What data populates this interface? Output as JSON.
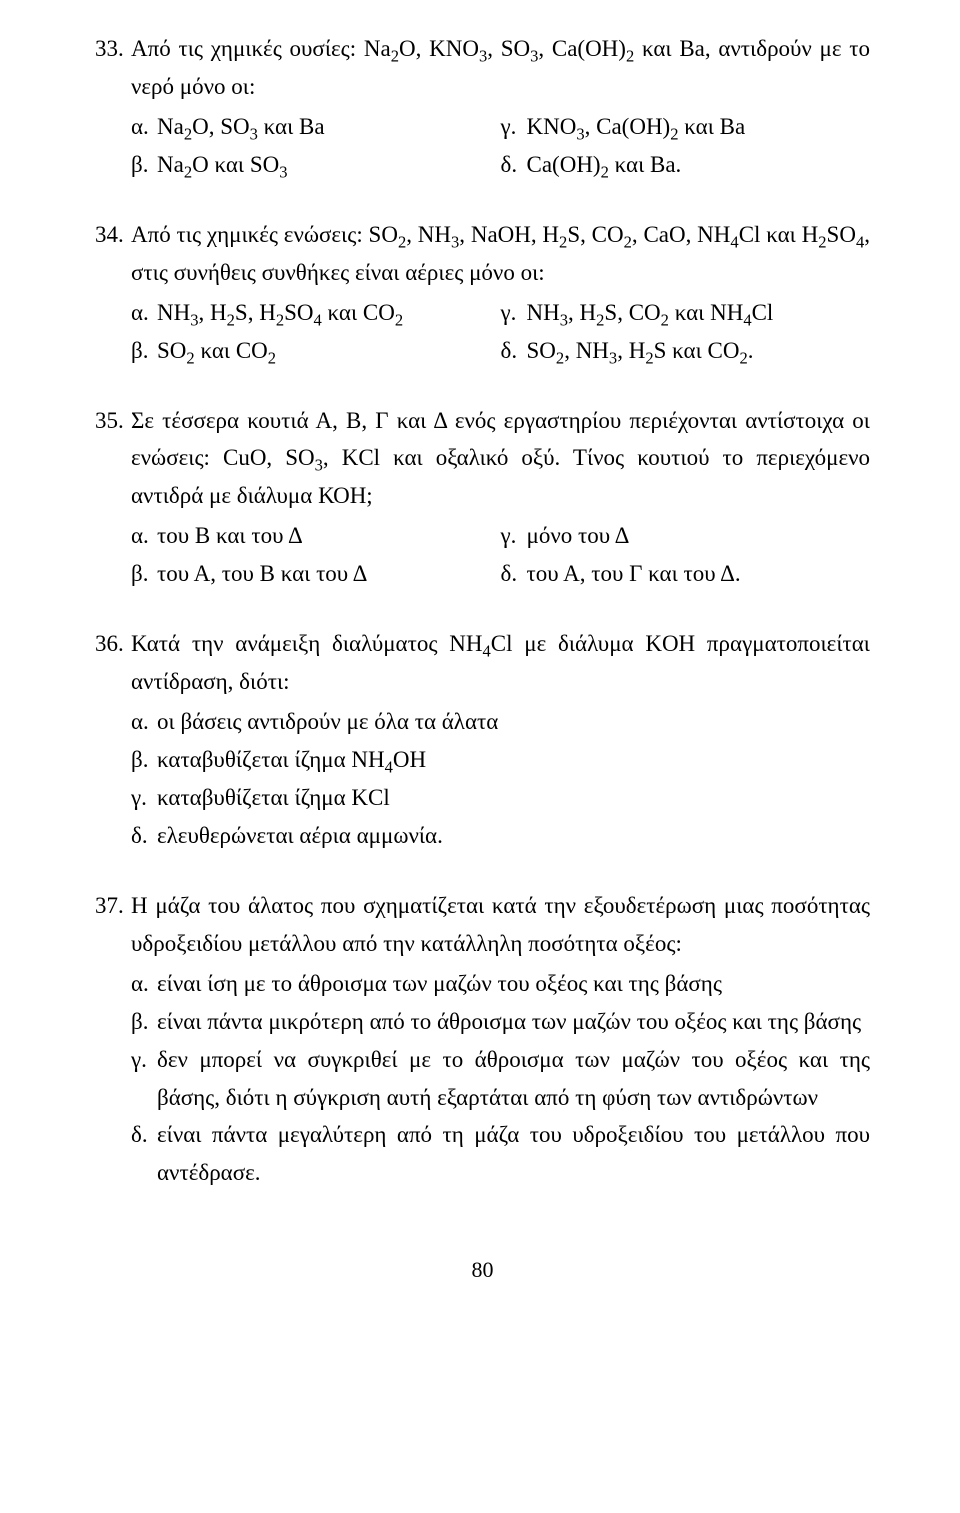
{
  "q33": {
    "num": "33.",
    "stem_html": "Από τις χημικές ουσίες: Na<span class='sub'>2</span>O, KNO<span class='sub'>3</span>, SO<span class='sub'>3</span>, Ca(OH)<span class='sub'>2</span> και Ba, αντιδρούν με το νερό μόνο οι:",
    "optA_label": "α.",
    "optA_html": "Na<span class='sub'>2</span>O, SO<span class='sub'>3</span> και Ba",
    "optB_label": "β.",
    "optB_html": "Na<span class='sub'>2</span>O και SO<span class='sub'>3</span>",
    "optC_label": "γ.",
    "optC_html": "KNO<span class='sub'>3</span>, Ca(OH)<span class='sub'>2</span> και Ba",
    "optD_label": "δ.",
    "optD_html": "Ca(OH)<span class='sub'>2</span> και Ba."
  },
  "q34": {
    "num": "34.",
    "stem_html": "Από τις χημικές ενώσεις: SO<span class='sub'>2</span>, NH<span class='sub'>3</span>, NaOH, H<span class='sub'>2</span>S, CO<span class='sub'>2</span>, CaO, NH<span class='sub'>4</span>Cl και H<span class='sub'>2</span>SO<span class='sub'>4</span>, στις συνήθεις συνθήκες είναι αέριες μόνο οι:",
    "optA_label": "α.",
    "optA_html": "NH<span class='sub'>3</span>, H<span class='sub'>2</span>S, H<span class='sub'>2</span>SO<span class='sub'>4</span> και CO<span class='sub'>2</span>",
    "optB_label": "β.",
    "optB_html": "SO<span class='sub'>2</span> και CO<span class='sub'>2</span>",
    "optC_label": "γ.",
    "optC_html": "NH<span class='sub'>3</span>, H<span class='sub'>2</span>S, CO<span class='sub'>2</span> και NH<span class='sub'>4</span>Cl",
    "optD_label": "δ.",
    "optD_html": "SO<span class='sub'>2</span>, NH<span class='sub'>3</span>, H<span class='sub'>2</span>S και CO<span class='sub'>2</span>."
  },
  "q35": {
    "num": "35.",
    "stem_html": "Σε τέσσερα κουτιά Α, Β, Γ και Δ ενός εργαστηρίου περιέχονται αντίστοιχα οι ενώσεις: CuO, SO<span class='sub'>3</span>, KCl και οξαλικό οξύ. Τίνος κουτιού το περιεχόμενο αντιδρά με διάλυμα ΚΟΗ;",
    "optA_label": "α.",
    "optA_html": "του Β και του Δ",
    "optB_label": "β.",
    "optB_html": "του Α, του Β και του Δ",
    "optC_label": "γ.",
    "optC_html": "μόνο του Δ",
    "optD_label": "δ.",
    "optD_html": "του Α, του Γ και του Δ."
  },
  "q36": {
    "num": "36.",
    "stem_html": "Κατά την ανάμειξη διαλύματος NH<span class='sub'>4</span>Cl με διάλυμα KOH πραγματοποιείται αντίδραση, διότι:",
    "optA_label": "α.",
    "optA_html": "οι βάσεις αντιδρούν με όλα τα άλατα",
    "optB_label": "β.",
    "optB_html": "καταβυθίζεται ίζημα NH<span class='sub'>4</span>OH",
    "optC_label": "γ.",
    "optC_html": "καταβυθίζεται ίζημα KCl",
    "optD_label": "δ.",
    "optD_html": "ελευθερώνεται αέρια αμμωνία."
  },
  "q37": {
    "num": "37.",
    "stem_html": "Η μάζα του άλατος που σχηματίζεται κατά την εξουδετέρωση μιας ποσότητας υδροξειδίου μετάλλου από την κατάλληλη ποσότητα οξέος:",
    "optA_label": "α.",
    "optA_html": "είναι ίση με το άθροισμα των μαζών του οξέος και της βάσης",
    "optB_label": "β.",
    "optB_html": "είναι πάντα μικρότερη από το άθροισμα των μαζών του οξέος και της βάσης",
    "optC_label": "γ.",
    "optC_html": "δεν μπορεί να συγκριθεί με το άθροισμα των μαζών του οξέος και της βάσης, διότι η σύγκριση αυτή εξαρτάται από τη φύση των αντιδρώντων",
    "optD_label": "δ.",
    "optD_html": "είναι πάντα μεγαλύτερη από τη μάζα του υδροξειδίου του μετάλλου που αντέδρασε."
  },
  "page_number": "80"
}
